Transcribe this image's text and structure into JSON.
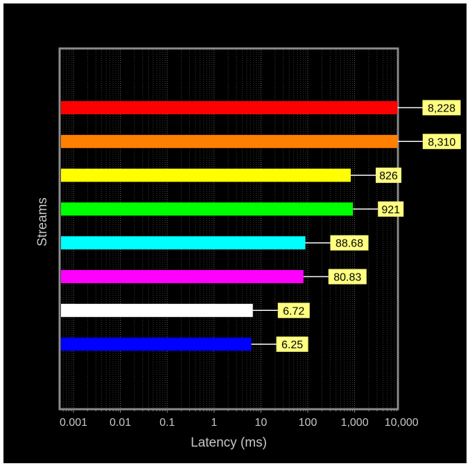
{
  "chart_data": {
    "type": "bar",
    "orientation": "horizontal",
    "x_scale": "log",
    "xlim": [
      0.0005,
      10000
    ],
    "xlabel": "Latency (ms)",
    "ylabel": "Streams",
    "x_ticks": [
      {
        "value": 0.001,
        "label": "0.001"
      },
      {
        "value": 0.01,
        "label": "0.01"
      },
      {
        "value": 0.1,
        "label": "0.1"
      },
      {
        "value": 1,
        "label": "1"
      },
      {
        "value": 10,
        "label": "10"
      },
      {
        "value": 100,
        "label": "100"
      },
      {
        "value": 1000,
        "label": "1,000"
      },
      {
        "value": 10000,
        "label": "10,000"
      }
    ],
    "grid": {
      "vertical": true,
      "horizontal": false
    },
    "background": "#000000",
    "frame_color": "#8c8c8c",
    "label_background": "#ffff80",
    "bars": [
      {
        "value": 8228,
        "label": "8,228",
        "color": "#ff0000"
      },
      {
        "value": 8310,
        "label": "8,310",
        "color": "#ff8000"
      },
      {
        "value": 826,
        "label": "826",
        "color": "#ffff00"
      },
      {
        "value": 921,
        "label": "921",
        "color": "#00ff00"
      },
      {
        "value": 88.68,
        "label": "88.68",
        "color": "#00ffff"
      },
      {
        "value": 80.83,
        "label": "80.83",
        "color": "#ff00ff"
      },
      {
        "value": 6.72,
        "label": "6.72",
        "color": "#ffffff"
      },
      {
        "value": 6.25,
        "label": "6.25",
        "color": "#0000ff"
      }
    ]
  }
}
